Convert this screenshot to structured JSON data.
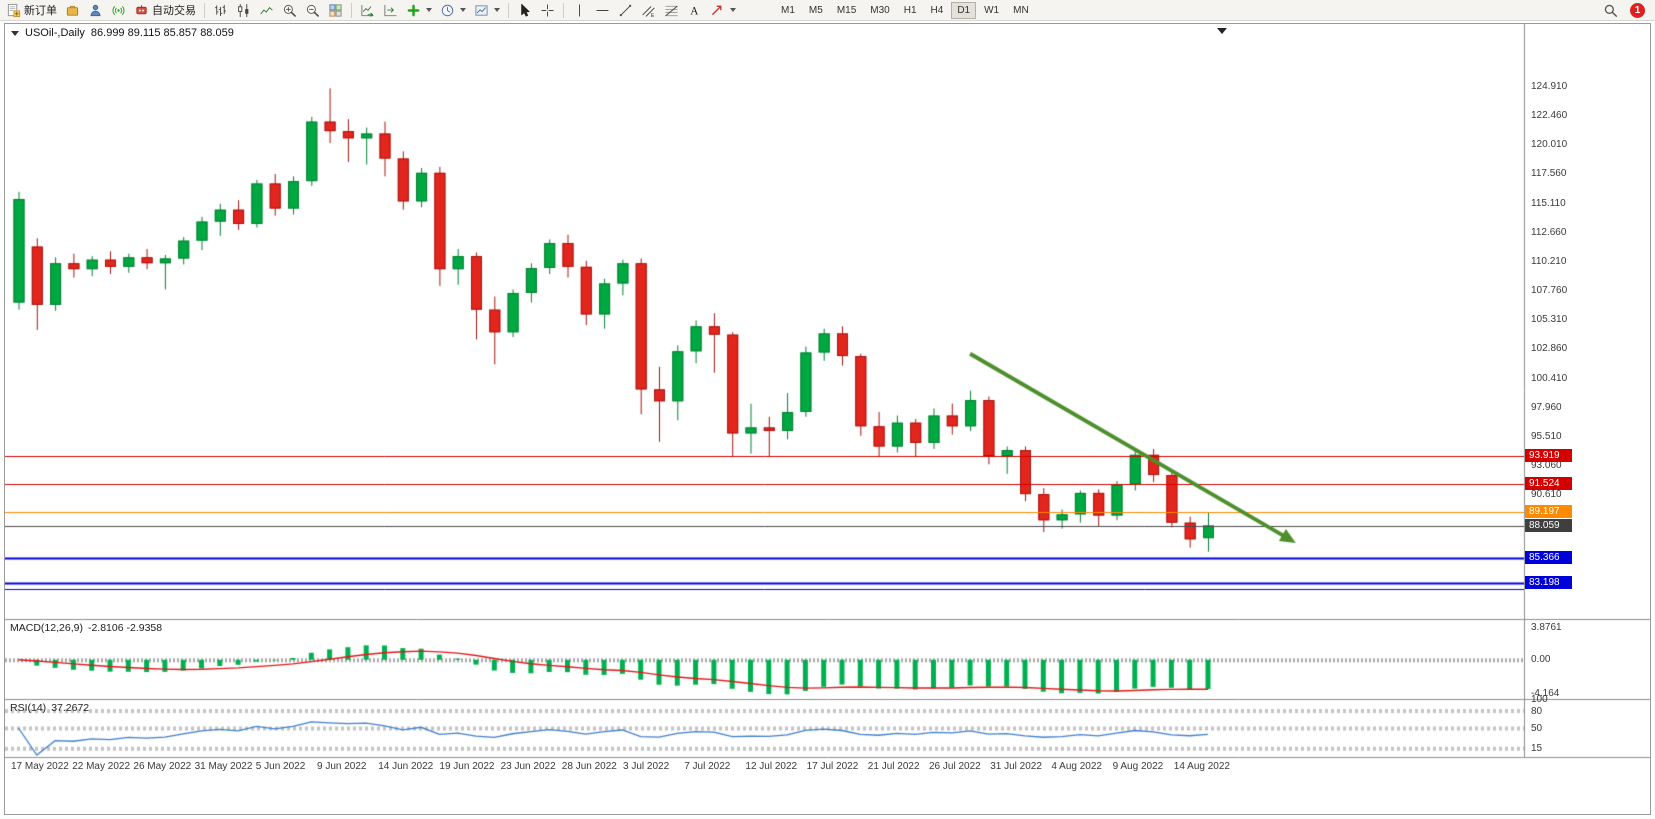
{
  "toolbar": {
    "new_order_label": "新订单",
    "auto_trading_label": "自动交易",
    "timeframes": [
      "M1",
      "M5",
      "M15",
      "M30",
      "H1",
      "H4",
      "D1",
      "W1",
      "MN"
    ],
    "active_timeframe": "D1",
    "notification_count": "1",
    "icons": [
      "new-order-icon",
      "profiles-icon",
      "market-watch-icon",
      "signals-icon",
      "auto-trading-icon",
      "bar-chart-icon",
      "candlestick-chart-icon",
      "line-chart-icon",
      "zoom-in-icon",
      "zoom-out-icon",
      "tile-windows-icon",
      "auto-scroll-icon",
      "chart-shift-icon",
      "indicators-icon",
      "periods-icon",
      "template-icon",
      "cursor-icon",
      "crosshair-icon",
      "vline-icon",
      "hline-icon",
      "trendline-icon",
      "channel-icon",
      "fibo-icon",
      "text-icon",
      "arrows-icon",
      "search-icon"
    ]
  },
  "chart": {
    "title": "USOil-,Daily",
    "ohlc": "86.999 89.115 85.857 88.059"
  },
  "chart_data": {
    "type": "candlestick",
    "symbol": "USOil-",
    "period": "Daily",
    "current": {
      "open": 86.999,
      "high": 89.115,
      "low": 85.857,
      "close": 88.059
    },
    "ylim": [
      80.0,
      128.8
    ],
    "grid": false,
    "colors": {
      "up": "#00a841",
      "up_border": "#067f34",
      "down": "#e3261d",
      "down_border": "#a61510",
      "macd_hist": "#00b050",
      "macd_signal": "#e01818",
      "rsi": "#3f7fce",
      "axis_text": "#3a3a3a",
      "arrow": "#4e8f2c"
    },
    "price_axis": [
      "124.910",
      "122.460",
      "120.010",
      "117.560",
      "115.110",
      "112.660",
      "110.210",
      "107.760",
      "105.310",
      "102.860",
      "100.410",
      "97.960",
      "95.510",
      "93.060",
      "90.610"
    ],
    "price_badges": [
      {
        "text": "93.919",
        "price": 93.919,
        "bg": "#d40000"
      },
      {
        "text": "91.524",
        "price": 91.524,
        "bg": "#d40000"
      },
      {
        "text": "89.197",
        "price": 89.197,
        "bg": "#ff8a00"
      },
      {
        "text": "88.059",
        "price": 88.059,
        "bg": "#3f3f3f"
      },
      {
        "text": "85.366",
        "price": 85.366,
        "bg": "#0000d8"
      },
      {
        "text": "83.198",
        "price": 83.198,
        "bg": "#0000d8"
      }
    ],
    "hlines": [
      {
        "price": 93.919,
        "color": "#d40000",
        "width": 1
      },
      {
        "price": 91.524,
        "color": "#d40000",
        "width": 1
      },
      {
        "price": 89.197,
        "color": "#ff8a00",
        "width": 1
      },
      {
        "price": 88.059,
        "color": "#4a4a4a",
        "width": 1
      },
      {
        "price": 85.366,
        "color": "#0000d8",
        "width": 2
      },
      {
        "price": 83.198,
        "color": "#0000d8",
        "width": 2
      },
      {
        "price": 82.72,
        "color": "#0000d8",
        "width": 1
      }
    ],
    "trend_arrow": {
      "from_index": 52,
      "from_price": 102.5,
      "to_index": 69.8,
      "to_price": 86.6,
      "color": "#4e8f2c"
    },
    "date_axis": [
      "17 May 2022",
      "22 May 2022",
      "26 May 2022",
      "31 May 2022",
      "5 Jun 2022",
      "9 Jun 2022",
      "14 Jun 2022",
      "19 Jun 2022",
      "23 Jun 2022",
      "28 Jun 2022",
      "3 Jul 2022",
      "7 Jul 2022",
      "12 Jul 2022",
      "17 Jul 2022",
      "21 Jul 2022",
      "26 Jul 2022",
      "31 Jul 2022",
      "4 Aug 2022",
      "9 Aug 2022",
      "14 Aug 2022"
    ],
    "candles": [
      [
        106.8,
        116.1,
        106.2,
        115.5
      ],
      [
        111.5,
        112.2,
        104.5,
        106.6
      ],
      [
        106.6,
        110.6,
        106.1,
        110.1
      ],
      [
        110.1,
        110.9,
        108.9,
        109.6
      ],
      [
        109.6,
        110.7,
        109.0,
        110.4
      ],
      [
        110.4,
        111.1,
        109.2,
        109.8
      ],
      [
        109.8,
        110.9,
        109.3,
        110.6
      ],
      [
        110.6,
        111.3,
        109.6,
        110.1
      ],
      [
        110.1,
        110.8,
        107.9,
        110.5
      ],
      [
        110.5,
        112.3,
        110.0,
        112.0
      ],
      [
        112.0,
        114.0,
        111.2,
        113.6
      ],
      [
        113.6,
        115.1,
        112.4,
        114.6
      ],
      [
        114.6,
        115.4,
        112.9,
        113.4
      ],
      [
        113.4,
        117.1,
        113.1,
        116.8
      ],
      [
        116.8,
        117.6,
        114.1,
        114.7
      ],
      [
        114.7,
        117.4,
        114.2,
        117.0
      ],
      [
        117.0,
        122.4,
        116.6,
        122.0
      ],
      [
        122.0,
        124.8,
        120.2,
        121.2
      ],
      [
        121.2,
        122.2,
        118.6,
        120.6
      ],
      [
        120.6,
        121.5,
        118.4,
        121.0
      ],
      [
        121.0,
        122.0,
        117.4,
        118.9
      ],
      [
        118.9,
        119.5,
        114.6,
        115.3
      ],
      [
        115.3,
        118.1,
        114.8,
        117.7
      ],
      [
        117.7,
        118.2,
        108.2,
        109.6
      ],
      [
        109.6,
        111.3,
        108.3,
        110.7
      ],
      [
        110.7,
        111.0,
        103.7,
        106.2
      ],
      [
        106.2,
        107.3,
        101.6,
        104.3
      ],
      [
        104.3,
        107.9,
        103.9,
        107.6
      ],
      [
        107.6,
        110.1,
        106.8,
        109.7
      ],
      [
        109.7,
        112.1,
        109.2,
        111.8
      ],
      [
        111.8,
        112.5,
        108.9,
        109.8
      ],
      [
        109.8,
        110.3,
        104.9,
        105.8
      ],
      [
        105.8,
        108.8,
        104.6,
        108.4
      ],
      [
        108.4,
        110.4,
        107.4,
        110.1
      ],
      [
        110.1,
        110.5,
        97.4,
        99.5
      ],
      [
        99.5,
        101.4,
        95.1,
        98.5
      ],
      [
        98.5,
        103.2,
        96.9,
        102.7
      ],
      [
        102.7,
        105.3,
        101.7,
        104.8
      ],
      [
        104.8,
        105.9,
        100.9,
        104.1
      ],
      [
        104.1,
        104.3,
        93.9,
        95.8
      ],
      [
        95.8,
        98.3,
        94.1,
        96.3
      ],
      [
        96.3,
        97.2,
        93.9,
        96.0
      ],
      [
        96.0,
        99.2,
        95.3,
        97.6
      ],
      [
        97.6,
        103.1,
        97.2,
        102.6
      ],
      [
        102.6,
        104.6,
        101.9,
        104.2
      ],
      [
        104.2,
        104.8,
        101.5,
        102.3
      ],
      [
        102.3,
        102.5,
        95.6,
        96.4
      ],
      [
        96.4,
        97.6,
        93.9,
        94.7
      ],
      [
        94.7,
        97.3,
        94.2,
        96.7
      ],
      [
        96.7,
        97.0,
        93.9,
        95.0
      ],
      [
        95.0,
        97.9,
        94.5,
        97.3
      ],
      [
        97.3,
        98.3,
        95.7,
        96.4
      ],
      [
        96.4,
        99.4,
        96.0,
        98.6
      ],
      [
        98.6,
        98.9,
        93.2,
        93.9
      ],
      [
        93.9,
        94.7,
        92.4,
        94.4
      ],
      [
        94.4,
        94.7,
        90.1,
        90.7
      ],
      [
        90.7,
        91.2,
        87.5,
        88.5
      ],
      [
        88.5,
        89.4,
        87.8,
        89.0
      ],
      [
        89.0,
        91.0,
        88.3,
        90.8
      ],
      [
        90.8,
        91.1,
        88.0,
        88.9
      ],
      [
        88.9,
        91.8,
        88.5,
        91.5
      ],
      [
        91.5,
        94.4,
        91.0,
        94.0
      ],
      [
        94.0,
        94.5,
        91.7,
        92.3
      ],
      [
        92.3,
        92.6,
        87.9,
        88.3
      ],
      [
        88.3,
        88.8,
        86.2,
        86.9
      ],
      [
        86.999,
        89.115,
        85.857,
        88.059
      ]
    ],
    "macd": {
      "label": "MACD(12,26,9)",
      "values_text": "-2.8106 -2.9358",
      "axis": [
        "3.8761",
        "0.00",
        "-4.164"
      ],
      "fast": 12,
      "slow": 26,
      "signal": 9
    },
    "rsi": {
      "label": "RSI(14)",
      "value_text": "37.2672",
      "axis": [
        "100",
        "80",
        "50",
        "15"
      ],
      "period": 14
    }
  }
}
